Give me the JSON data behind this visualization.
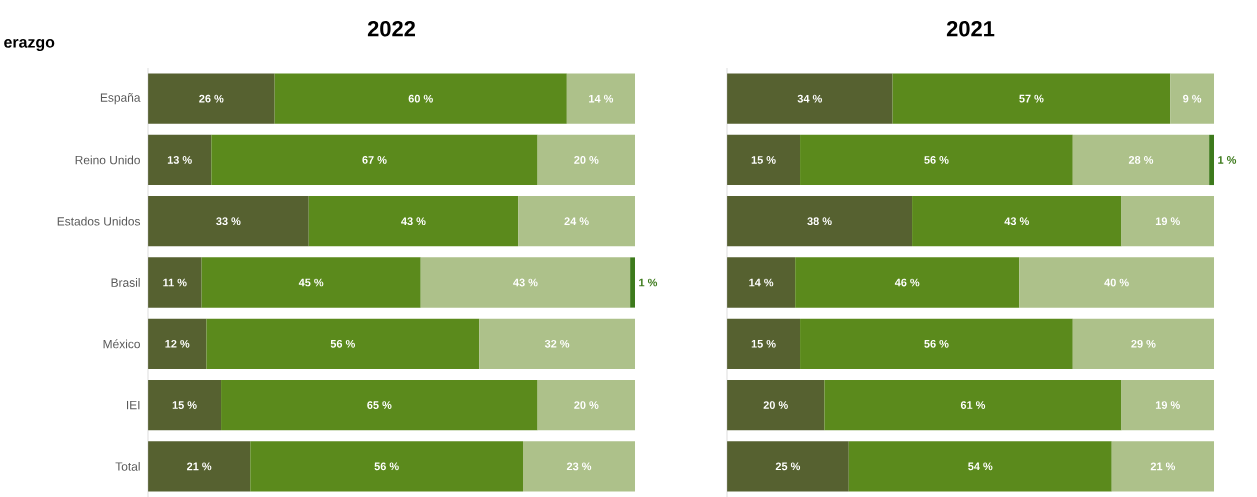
{
  "chart_data": [
    {
      "type": "bar",
      "orientation": "horizontal",
      "stacked": true,
      "title": "2022",
      "annotations": [
        "erazgo"
      ],
      "categories": [
        "España",
        "Reino Unido",
        "Estados Unidos",
        "Brasil",
        "México",
        "IEI",
        "Total"
      ],
      "xlim": [
        0,
        100
      ],
      "tick_labels": "y",
      "series": [
        {
          "color": "#566130",
          "values": [
            26,
            13,
            33,
            11,
            12,
            15,
            21
          ],
          "value_labels": [
            "26 %",
            "13 %",
            "33 %",
            "11 %",
            "12 %",
            "15 %",
            "21 %"
          ]
        },
        {
          "color": "#5b8a1c",
          "values": [
            60,
            67,
            43,
            45,
            56,
            65,
            56
          ],
          "value_labels": [
            "60 %",
            "67 %",
            "43 %",
            "45 %",
            "56 %",
            "65 %",
            "56 %"
          ]
        },
        {
          "color": "#adc18a",
          "values": [
            14,
            20,
            24,
            43,
            32,
            20,
            23
          ],
          "value_labels": [
            "14 %",
            "20 %",
            "24 %",
            "43 %",
            "32 %",
            "20 %",
            "23 %"
          ]
        },
        {
          "color": "#3d7a1c",
          "values": [
            null,
            null,
            null,
            1,
            null,
            null,
            null
          ],
          "value_labels": [
            null,
            null,
            null,
            "1 %",
            null,
            null,
            null
          ]
        }
      ]
    },
    {
      "type": "bar",
      "orientation": "horizontal",
      "stacked": true,
      "title": "2021",
      "categories": [
        null,
        null,
        null,
        null,
        null,
        null,
        null
      ],
      "xlim": [
        0,
        100
      ],
      "tick_labels": false,
      "series": [
        {
          "color": "#566130",
          "values": [
            34,
            15,
            38,
            14,
            15,
            20,
            25
          ],
          "value_labels": [
            "34 %",
            "15 %",
            "38 %",
            "14 %",
            "15 %",
            "20 %",
            "25 %"
          ]
        },
        {
          "color": "#5b8a1c",
          "values": [
            57,
            56,
            43,
            46,
            56,
            61,
            54
          ],
          "value_labels": [
            "57 %",
            "56 %",
            "43 %",
            "46 %",
            "56 %",
            "61 %",
            "54 %"
          ]
        },
        {
          "color": "#adc18a",
          "values": [
            9,
            28,
            19,
            40,
            29,
            19,
            21
          ],
          "value_labels": [
            "9 %",
            "28 %",
            "19 %",
            "40 %",
            "29 %",
            "19 %",
            "21 %"
          ]
        },
        {
          "color": "#3d7a1c",
          "values": [
            null,
            1,
            null,
            null,
            null,
            null,
            null
          ],
          "value_labels": [
            null,
            "1 %",
            null,
            null,
            null,
            null,
            null
          ]
        }
      ]
    }
  ]
}
